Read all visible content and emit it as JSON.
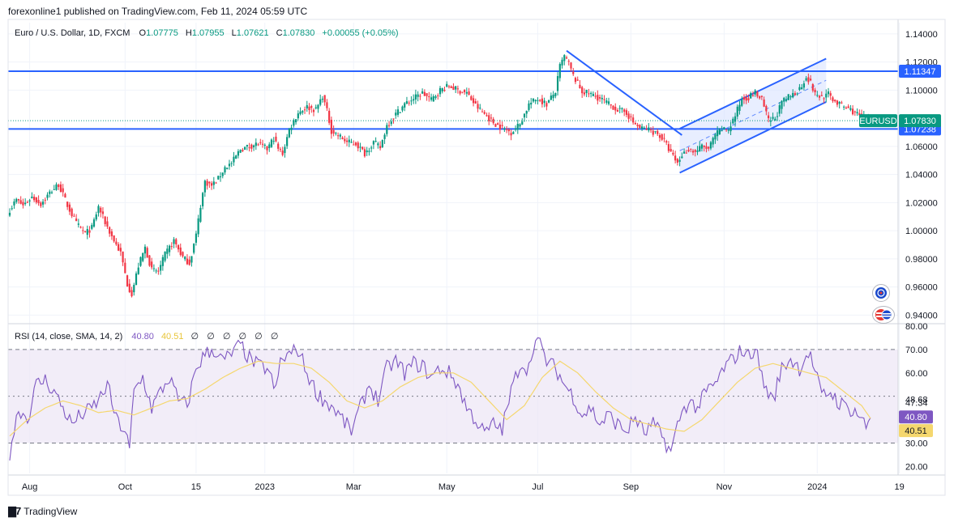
{
  "header": {
    "publisher_line": "forexonline1 published on TradingView.com, Feb 11, 2024 05:59 UTC"
  },
  "legend": {
    "symbol": "Euro / U.S. Dollar, 1D, FXCM",
    "open_label": "O",
    "open": "1.07775",
    "high_label": "H",
    "high": "1.07955",
    "low_label": "L",
    "low": "1.07621",
    "close_label": "C",
    "close": "1.07830",
    "change": "+0.00055 (+0.05%)"
  },
  "rsi_legend": {
    "name": "RSI (14, close, SMA, 14, 2)",
    "rsi_value": "40.80",
    "sma_value": "40.51",
    "empty_values": [
      "∅",
      "∅",
      "∅",
      "∅",
      "∅",
      "∅"
    ]
  },
  "footer": {
    "brand": "TradingView"
  },
  "icons": [
    "globe-icon",
    "us-flag-icon",
    "tradingview-logo-icon"
  ],
  "colors": {
    "up": "#089981",
    "down": "#f23645",
    "level_line": "#2962ff",
    "rsi_line": "#7e57c2",
    "sma_line": "#f5d76e",
    "rsi_band": "#ede7f6",
    "channel_fill": "#d6e0ff",
    "symbol_badge": "#089981"
  },
  "chart_data": [
    {
      "type": "candlestick",
      "symbol": "EURUSD",
      "interval": "1D",
      "y_axis_side": "right",
      "ylim": [
        0.935,
        1.148
      ],
      "y_ticks": [
        "1.14000",
        "1.12000",
        "1.10000",
        "1.06000",
        "1.04000",
        "1.02000",
        "1.00000",
        "0.98000",
        "0.96000",
        "0.94000"
      ],
      "x_ticks": [
        {
          "label": "Aug",
          "index": 9
        },
        {
          "label": "Oct",
          "index": 52
        },
        {
          "label": "15",
          "index": 84
        },
        {
          "label": "2023",
          "index": 115
        },
        {
          "label": "Mar",
          "index": 155
        },
        {
          "label": "May",
          "index": 197
        },
        {
          "label": "Jul",
          "index": 238
        },
        {
          "label": "Sep",
          "index": 280
        },
        {
          "label": "Nov",
          "index": 322
        },
        {
          "label": "2024",
          "index": 364
        },
        {
          "label": "19",
          "index": 401
        }
      ],
      "horizontal_levels": [
        {
          "value": 1.11347,
          "label": "1.11347"
        },
        {
          "value": 1.07238,
          "label": "1.07238"
        }
      ],
      "last_price": {
        "value": 1.0783,
        "label": "1.07830",
        "symbol_label": "EURUSD"
      },
      "drawings": {
        "trendline": {
          "from": {
            "index": 251,
            "price": 1.128
          },
          "to": {
            "index": 303,
            "price": 1.068
          }
        },
        "channel": {
          "upper": {
            "from": {
              "index": 302,
              "price": 1.0726
            },
            "to": {
              "index": 368,
              "price": 1.1224
            }
          },
          "lower": {
            "from": {
              "index": 302,
              "price": 1.0412
            },
            "to": {
              "index": 368,
              "price": 1.0916
            }
          }
        }
      },
      "anchors": [
        [
          0,
          1.015
        ],
        [
          3,
          1.022
        ],
        [
          6,
          1.018
        ],
        [
          10,
          1.024
        ],
        [
          14,
          1.019
        ],
        [
          18,
          1.027
        ],
        [
          22,
          1.033
        ],
        [
          26,
          1.018
        ],
        [
          30,
          1.005
        ],
        [
          34,
          0.998
        ],
        [
          37,
          1.002
        ],
        [
          40,
          1.017
        ],
        [
          43,
          1.006
        ],
        [
          46,
          0.996
        ],
        [
          50,
          0.984
        ],
        [
          53,
          0.962
        ],
        [
          55,
          0.955
        ],
        [
          58,
          0.975
        ],
        [
          61,
          0.988
        ],
        [
          64,
          0.972
        ],
        [
          67,
          0.971
        ],
        [
          70,
          0.983
        ],
        [
          74,
          0.993
        ],
        [
          78,
          0.981
        ],
        [
          81,
          0.977
        ],
        [
          84,
          0.997
        ],
        [
          86,
          1.018
        ],
        [
          88,
          1.035
        ],
        [
          91,
          1.032
        ],
        [
          94,
          1.037
        ],
        [
          97,
          1.045
        ],
        [
          100,
          1.048
        ],
        [
          104,
          1.058
        ],
        [
          108,
          1.06
        ],
        [
          112,
          1.062
        ],
        [
          116,
          1.058
        ],
        [
          119,
          1.066
        ],
        [
          121,
          1.058
        ],
        [
          123,
          1.055
        ],
        [
          126,
          1.072
        ],
        [
          130,
          1.084
        ],
        [
          134,
          1.088
        ],
        [
          138,
          1.086
        ],
        [
          141,
          1.096
        ],
        [
          143,
          1.085
        ],
        [
          145,
          1.071
        ],
        [
          148,
          1.068
        ],
        [
          152,
          1.063
        ],
        [
          156,
          1.062
        ],
        [
          160,
          1.055
        ],
        [
          164,
          1.063
        ],
        [
          167,
          1.059
        ],
        [
          170,
          1.075
        ],
        [
          174,
          1.083
        ],
        [
          178,
          1.09
        ],
        [
          182,
          1.094
        ],
        [
          186,
          1.098
        ],
        [
          190,
          1.093
        ],
        [
          194,
          1.1
        ],
        [
          198,
          1.103
        ],
        [
          202,
          1.1
        ],
        [
          206,
          1.098
        ],
        [
          210,
          1.089
        ],
        [
          214,
          1.083
        ],
        [
          218,
          1.077
        ],
        [
          222,
          1.073
        ],
        [
          226,
          1.07
        ],
        [
          230,
          1.076
        ],
        [
          234,
          1.09
        ],
        [
          238,
          1.094
        ],
        [
          242,
          1.09
        ],
        [
          246,
          1.099
        ],
        [
          248,
          1.117
        ],
        [
          250,
          1.124
        ],
        [
          252,
          1.119
        ],
        [
          254,
          1.11
        ],
        [
          258,
          1.099
        ],
        [
          262,
          1.097
        ],
        [
          266,
          1.094
        ],
        [
          270,
          1.09
        ],
        [
          274,
          1.086
        ],
        [
          278,
          1.084
        ],
        [
          281,
          1.077
        ],
        [
          284,
          1.073
        ],
        [
          288,
          1.072
        ],
        [
          292,
          1.069
        ],
        [
          295,
          1.064
        ],
        [
          298,
          1.055
        ],
        [
          301,
          1.048
        ],
        [
          303,
          1.054
        ],
        [
          306,
          1.058
        ],
        [
          309,
          1.056
        ],
        [
          312,
          1.06
        ],
        [
          315,
          1.058
        ],
        [
          318,
          1.068
        ],
        [
          321,
          1.072
        ],
        [
          324,
          1.072
        ],
        [
          327,
          1.082
        ],
        [
          330,
          1.094
        ],
        [
          333,
          1.095
        ],
        [
          336,
          1.098
        ],
        [
          339,
          1.093
        ],
        [
          342,
          1.078
        ],
        [
          345,
          1.08
        ],
        [
          348,
          1.091
        ],
        [
          351,
          1.095
        ],
        [
          354,
          1.098
        ],
        [
          357,
          1.103
        ],
        [
          359,
          1.11
        ],
        [
          361,
          1.105
        ],
        [
          363,
          1.097
        ],
        [
          366,
          1.095
        ],
        [
          369,
          1.097
        ],
        [
          372,
          1.092
        ],
        [
          375,
          1.089
        ],
        [
          378,
          1.087
        ],
        [
          381,
          1.084
        ],
        [
          384,
          1.081
        ],
        [
          386,
          1.079
        ],
        [
          388,
          1.0783
        ]
      ]
    },
    {
      "type": "line",
      "indicator": "RSI",
      "y_axis_side": "right",
      "ylim": [
        17,
        80
      ],
      "y_ticks": [
        "80.00",
        "70.00",
        "60.00",
        "48.68",
        "47.34",
        "40.00",
        "30.00",
        "20.00"
      ],
      "bands": [
        70,
        50,
        30
      ],
      "last_values": [
        {
          "name": "RSI",
          "value": 40.8,
          "label": "40.80"
        },
        {
          "name": "RSI-based MA",
          "value": 40.51,
          "label": "40.51"
        }
      ],
      "rsi_anchors": [
        [
          0,
          26
        ],
        [
          4,
          45
        ],
        [
          8,
          40
        ],
        [
          12,
          55
        ],
        [
          16,
          57
        ],
        [
          20,
          52
        ],
        [
          24,
          45
        ],
        [
          28,
          38
        ],
        [
          32,
          42
        ],
        [
          36,
          44
        ],
        [
          40,
          48
        ],
        [
          44,
          55
        ],
        [
          48,
          40
        ],
        [
          52,
          35
        ],
        [
          54,
          27
        ],
        [
          56,
          52
        ],
        [
          60,
          58
        ],
        [
          64,
          45
        ],
        [
          68,
          52
        ],
        [
          72,
          58
        ],
        [
          76,
          48
        ],
        [
          80,
          46
        ],
        [
          84,
          62
        ],
        [
          88,
          68
        ],
        [
          92,
          70
        ],
        [
          96,
          65
        ],
        [
          100,
          68
        ],
        [
          104,
          72
        ],
        [
          108,
          66
        ],
        [
          112,
          63
        ],
        [
          116,
          62
        ],
        [
          120,
          52
        ],
        [
          122,
          65
        ],
        [
          126,
          68
        ],
        [
          130,
          70
        ],
        [
          134,
          60
        ],
        [
          138,
          52
        ],
        [
          142,
          48
        ],
        [
          146,
          45
        ],
        [
          150,
          40
        ],
        [
          154,
          35
        ],
        [
          158,
          45
        ],
        [
          162,
          55
        ],
        [
          166,
          48
        ],
        [
          170,
          62
        ],
        [
          174,
          65
        ],
        [
          178,
          60
        ],
        [
          182,
          64
        ],
        [
          186,
          63
        ],
        [
          190,
          58
        ],
        [
          194,
          62
        ],
        [
          198,
          60
        ],
        [
          202,
          55
        ],
        [
          206,
          45
        ],
        [
          210,
          40
        ],
        [
          214,
          34
        ],
        [
          218,
          38
        ],
        [
          222,
          36
        ],
        [
          226,
          52
        ],
        [
          230,
          64
        ],
        [
          234,
          62
        ],
        [
          236,
          72
        ],
        [
          238,
          74
        ],
        [
          242,
          65
        ],
        [
          246,
          62
        ],
        [
          250,
          55
        ],
        [
          254,
          50
        ],
        [
          258,
          42
        ],
        [
          262,
          45
        ],
        [
          266,
          38
        ],
        [
          270,
          42
        ],
        [
          274,
          38
        ],
        [
          278,
          35
        ],
        [
          282,
          41
        ],
        [
          286,
          34
        ],
        [
          290,
          38
        ],
        [
          294,
          33
        ],
        [
          298,
          26
        ],
        [
          302,
          41
        ],
        [
          306,
          48
        ],
        [
          310,
          45
        ],
        [
          314,
          52
        ],
        [
          318,
          55
        ],
        [
          322,
          62
        ],
        [
          326,
          66
        ],
        [
          330,
          70
        ],
        [
          333,
          67
        ],
        [
          336,
          71
        ],
        [
          340,
          55
        ],
        [
          344,
          48
        ],
        [
          348,
          62
        ],
        [
          352,
          66
        ],
        [
          356,
          62
        ],
        [
          360,
          69
        ],
        [
          362,
          64
        ],
        [
          366,
          50
        ],
        [
          370,
          52
        ],
        [
          374,
          47
        ],
        [
          378,
          45
        ],
        [
          382,
          43
        ],
        [
          386,
          37
        ],
        [
          388,
          40.8
        ]
      ],
      "sma_anchors": [
        [
          0,
          33
        ],
        [
          8,
          40
        ],
        [
          16,
          45
        ],
        [
          24,
          48
        ],
        [
          32,
          46
        ],
        [
          40,
          43
        ],
        [
          48,
          44
        ],
        [
          56,
          42
        ],
        [
          64,
          45
        ],
        [
          72,
          48
        ],
        [
          80,
          49
        ],
        [
          88,
          53
        ],
        [
          96,
          58
        ],
        [
          104,
          62
        ],
        [
          112,
          65
        ],
        [
          120,
          64
        ],
        [
          128,
          64
        ],
        [
          136,
          62
        ],
        [
          144,
          56
        ],
        [
          152,
          48
        ],
        [
          160,
          45
        ],
        [
          168,
          48
        ],
        [
          176,
          54
        ],
        [
          184,
          58
        ],
        [
          192,
          60
        ],
        [
          200,
          60
        ],
        [
          208,
          56
        ],
        [
          216,
          48
        ],
        [
          224,
          40
        ],
        [
          232,
          46
        ],
        [
          240,
          58
        ],
        [
          248,
          65
        ],
        [
          256,
          60
        ],
        [
          264,
          52
        ],
        [
          272,
          45
        ],
        [
          280,
          40
        ],
        [
          288,
          38
        ],
        [
          296,
          36
        ],
        [
          304,
          35
        ],
        [
          312,
          40
        ],
        [
          320,
          48
        ],
        [
          328,
          56
        ],
        [
          336,
          62
        ],
        [
          344,
          64
        ],
        [
          352,
          62
        ],
        [
          360,
          60
        ],
        [
          368,
          58
        ],
        [
          376,
          52
        ],
        [
          384,
          46
        ],
        [
          388,
          40.51
        ]
      ]
    }
  ]
}
